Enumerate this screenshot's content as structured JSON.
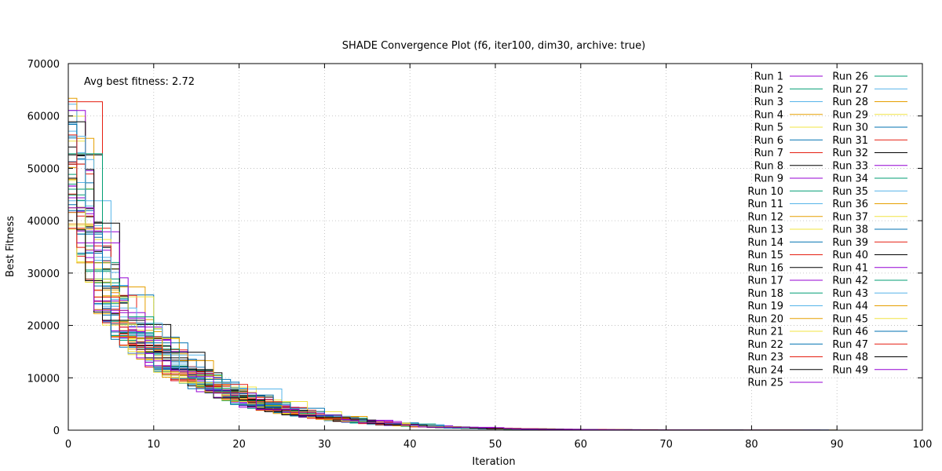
{
  "chart_data": {
    "type": "line",
    "title": "SHADE Convergence Plot (f6, iter100, dim30, archive: true)",
    "xlabel": "Iteration",
    "ylabel": "Best Fitness",
    "xlim": [
      0,
      100
    ],
    "ylim": [
      0,
      70000
    ],
    "xticks": [
      0,
      10,
      20,
      30,
      40,
      50,
      60,
      70,
      80,
      90,
      100
    ],
    "yticks": [
      0,
      10000,
      20000,
      30000,
      40000,
      50000,
      60000,
      70000
    ],
    "grid": true,
    "legend_position": "top-right",
    "annotation": "Avg best fitness: 2.72",
    "series_count": 49,
    "series_prefix": "Run ",
    "palette": [
      "#9400d3",
      "#009e73",
      "#56b4e9",
      "#e69f00",
      "#f0e442",
      "#0072b2",
      "#e51e10",
      "#000000"
    ],
    "checkpoints_x": [
      0,
      1,
      2,
      3,
      5,
      8,
      10,
      15,
      20,
      25,
      30,
      35,
      40,
      45,
      50,
      55,
      60,
      70,
      80,
      90,
      100
    ],
    "mean_best_fitness": [
      52000,
      44000,
      38000,
      30000,
      24000,
      18000,
      15000,
      10000,
      6000,
      4000,
      2500,
      1500,
      900,
      500,
      300,
      200,
      100,
      40,
      15,
      5,
      2.72
    ]
  }
}
